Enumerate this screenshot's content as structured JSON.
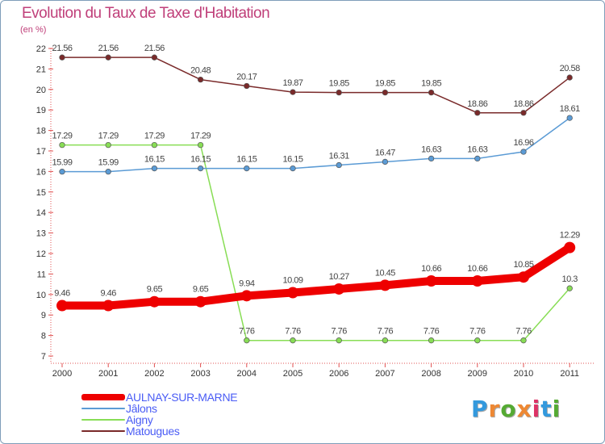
{
  "title": "Evolution du Taux de Taxe d'Habitation",
  "subtitle": "(en %)",
  "logo": {
    "text": "Proxiti",
    "colors": [
      "#3399dd",
      "#ee8833",
      "#55aa33",
      "#ee8833",
      "#dd3366",
      "#3399dd",
      "#55aa33"
    ]
  },
  "chart_data": {
    "type": "line",
    "title": "Evolution du Taux de Taxe d'Habitation",
    "ylabel": "(en %)",
    "xlabel": "",
    "ylim": [
      7,
      22
    ],
    "yticks": [
      "7",
      "8",
      "9",
      "10",
      "11",
      "12",
      "13",
      "14",
      "15",
      "16",
      "17",
      "18",
      "19",
      "20",
      "21",
      "22"
    ],
    "grid": false,
    "legend_position": "bottom-left",
    "x": [
      "2000",
      "2001",
      "2002",
      "2003",
      "2004",
      "2005",
      "2006",
      "2007",
      "2008",
      "2009",
      "2010",
      "2011"
    ],
    "series": [
      {
        "name": "AULNAY-SUR-MARNE",
        "color": "#ee0000",
        "values": [
          9.46,
          9.46,
          9.65,
          9.65,
          9.94,
          10.09,
          10.27,
          10.45,
          10.66,
          10.66,
          10.85,
          12.29
        ],
        "labels": [
          "9.46",
          "9.46",
          "9.65",
          "9.65",
          "9.94",
          "10.09",
          "10.27",
          "10.45",
          "10.66",
          "10.66",
          "10.85",
          "12.29"
        ]
      },
      {
        "name": "Jâlons",
        "color": "#5b9bd5",
        "values": [
          15.99,
          15.99,
          16.15,
          16.15,
          16.15,
          16.15,
          16.31,
          16.47,
          16.63,
          16.63,
          16.96,
          18.61
        ],
        "labels": [
          "15.99",
          "15.99",
          "16.15",
          "16.15",
          "16.15",
          "16.15",
          "16.31",
          "16.47",
          "16.63",
          "16.63",
          "16.96",
          "18.61"
        ]
      },
      {
        "name": "Aigny",
        "color": "#88dd55",
        "values": [
          17.29,
          17.29,
          17.29,
          17.29,
          7.76,
          7.76,
          7.76,
          7.76,
          7.76,
          7.76,
          7.76,
          10.3
        ],
        "labels": [
          "17.29",
          "17.29",
          "17.29",
          "17.29",
          "7.76",
          "7.76",
          "7.76",
          "7.76",
          "7.76",
          "7.76",
          "7.76",
          "10.3"
        ]
      },
      {
        "name": "Matougues",
        "color": "#7a2a2a",
        "values": [
          21.56,
          21.56,
          21.56,
          20.48,
          20.17,
          19.87,
          19.85,
          19.85,
          19.85,
          18.86,
          18.86,
          20.58
        ],
        "labels": [
          "21.56",
          "21.56",
          "21.56",
          "20.48",
          "20.17",
          "19.87",
          "19.85",
          "19.85",
          "19.85",
          "18.86",
          "18.86",
          "20.58"
        ]
      }
    ]
  }
}
